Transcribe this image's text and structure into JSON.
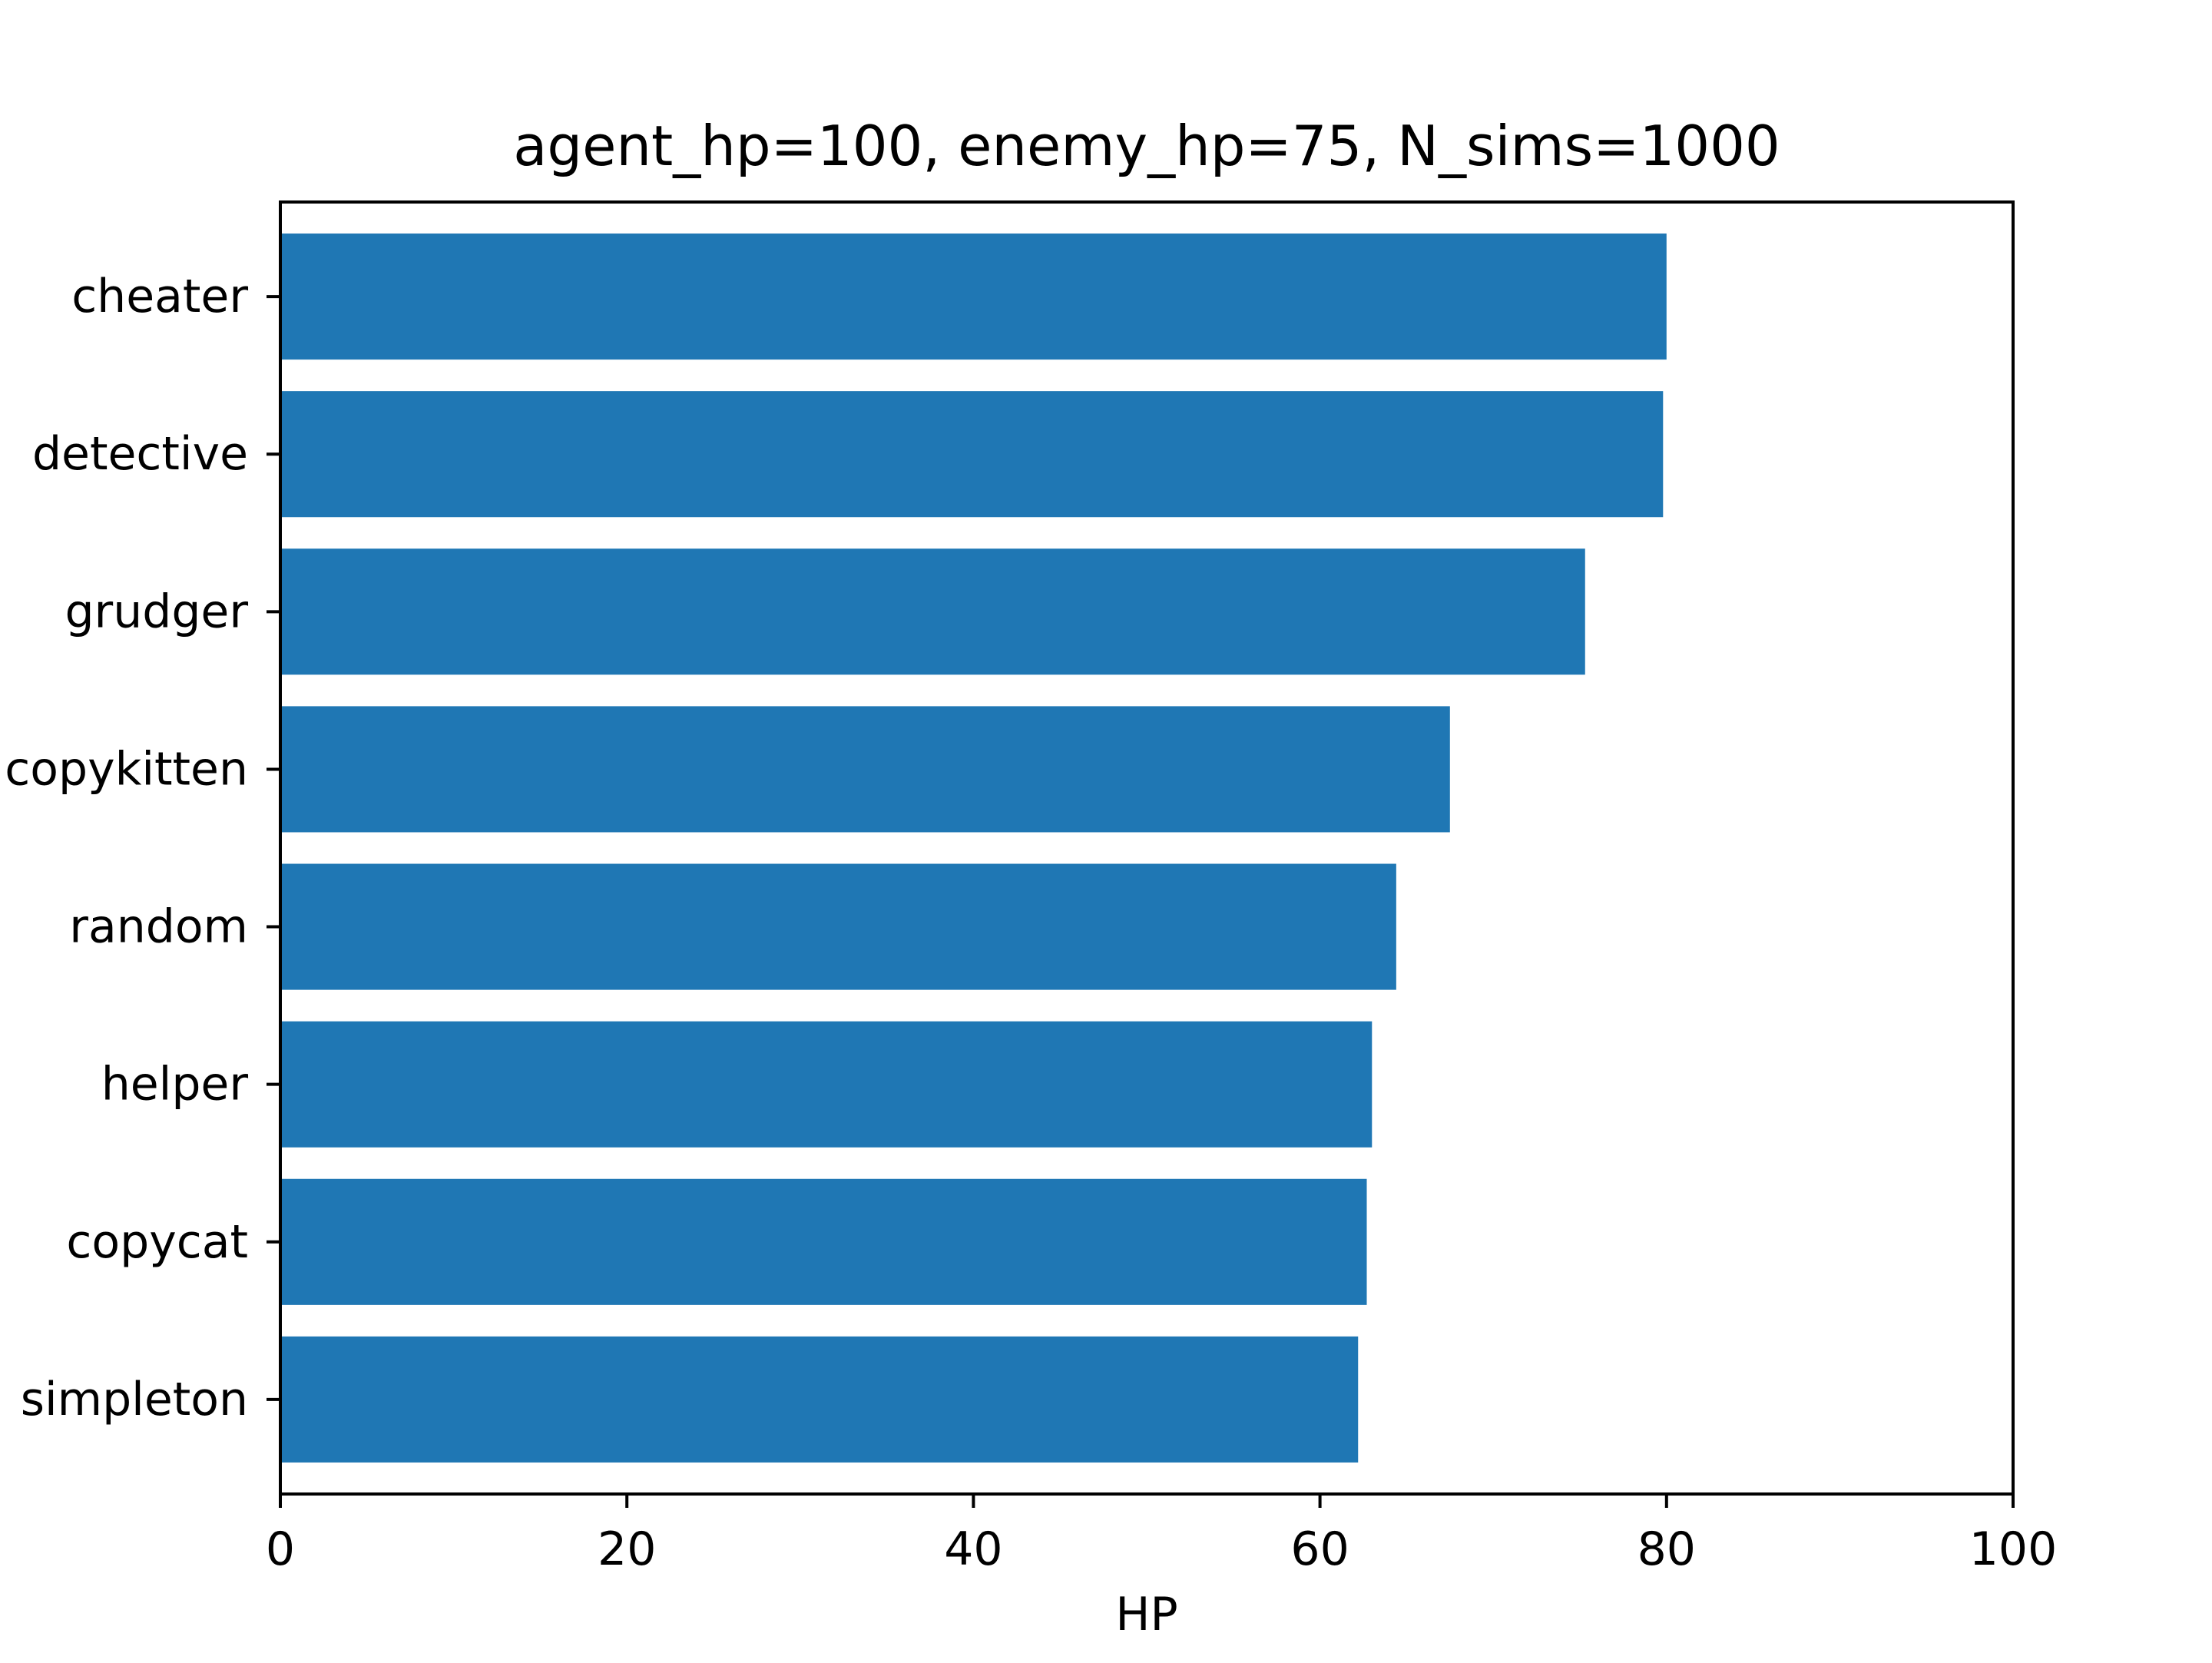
{
  "chart_data": {
    "type": "bar",
    "orientation": "horizontal",
    "title": "agent_hp=100, enemy_hp=75, N_sims=1000",
    "xlabel": "HP",
    "ylabel": "",
    "categories": [
      "cheater",
      "detective",
      "grudger",
      "copykitten",
      "random",
      "helper",
      "copycat",
      "simpleton"
    ],
    "values": [
      80.0,
      79.8,
      75.3,
      67.5,
      64.4,
      63.0,
      62.7,
      62.2
    ],
    "xlim": [
      0,
      100
    ],
    "xticks": [
      "0",
      "20",
      "40",
      "60",
      "80",
      "100"
    ],
    "grid": false,
    "legend": "none",
    "bar_color": "#1f77b4"
  }
}
